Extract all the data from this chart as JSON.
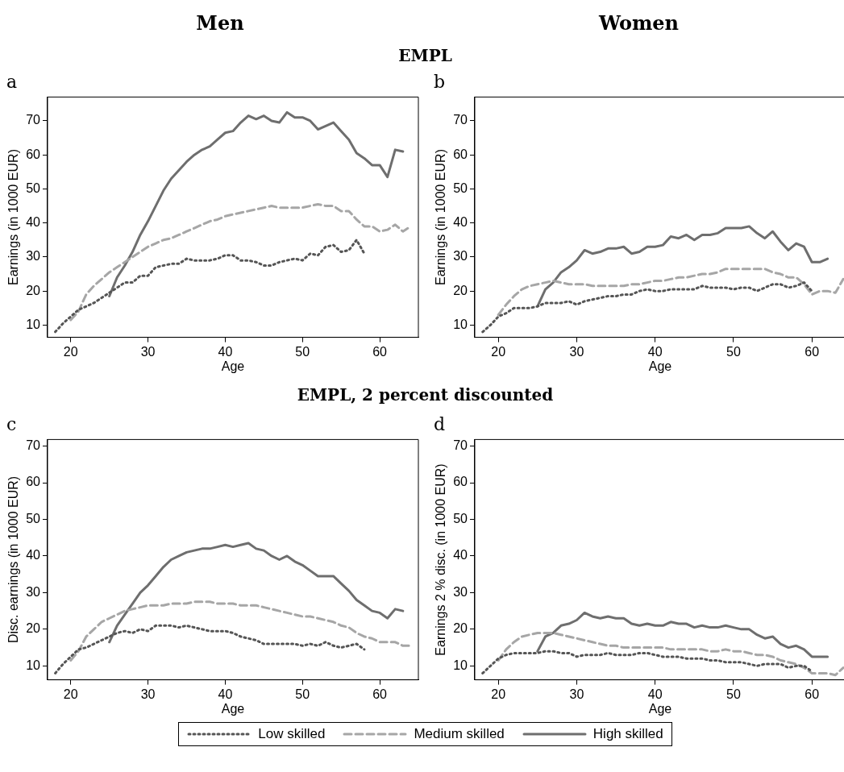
{
  "chart_data": [
    {
      "type": "line",
      "title": "a",
      "annotations": [
        "Men",
        "EMPL"
      ],
      "xlabel": "Age",
      "ylabel": "Earnings (in 1000 EUR)",
      "xlim": [
        17,
        65
      ],
      "xticks": [
        20,
        30,
        40,
        50,
        60
      ],
      "ylim": [
        6.4,
        77
      ],
      "yticks": [
        10,
        20,
        30,
        40,
        50,
        60,
        70
      ],
      "grid": false,
      "legend": "bottom",
      "marker": "none",
      "series": [
        {
          "name": "Low skilled",
          "color": "#555555",
          "line_style": "dotted",
          "x": [
            18,
            19,
            20,
            21,
            22,
            23,
            24,
            25,
            26,
            27,
            28,
            29,
            30,
            31,
            32,
            33,
            34,
            35,
            36,
            37,
            38,
            39,
            40,
            41,
            42,
            43,
            44,
            45,
            46,
            47,
            48,
            49,
            50,
            51,
            52,
            53,
            54,
            55,
            56,
            57,
            58
          ],
          "values": [
            8,
            10.5,
            12.5,
            14.5,
            15.5,
            16.5,
            18,
            19.5,
            21,
            22.5,
            22.5,
            24.5,
            24.5,
            27,
            27.5,
            28,
            28,
            29.5,
            29,
            29,
            29,
            29.5,
            30.5,
            30.5,
            29,
            29,
            28.5,
            27.5,
            27.5,
            28.5,
            29,
            29.5,
            29,
            31,
            30.5,
            33,
            33.5,
            31.5,
            32,
            35,
            31
          ]
        },
        {
          "name": "Medium skilled",
          "color": "#a6a6a6",
          "line_style": "dashed",
          "x": [
            20,
            21,
            22,
            23,
            24,
            25,
            26,
            27,
            28,
            29,
            30,
            31,
            32,
            33,
            34,
            35,
            36,
            37,
            38,
            39,
            40,
            41,
            42,
            43,
            44,
            45,
            46,
            47,
            48,
            49,
            50,
            51,
            52,
            53,
            54,
            55,
            56,
            57,
            58,
            59,
            60,
            61,
            62,
            63,
            64
          ],
          "values": [
            11.5,
            14,
            19,
            21.5,
            23.5,
            25.5,
            27,
            28.5,
            30,
            31.5,
            33,
            34,
            35,
            35.5,
            36.5,
            37.5,
            38.5,
            39.5,
            40.5,
            41,
            42,
            42.5,
            43,
            43.5,
            44,
            44.5,
            45,
            44.5,
            44.5,
            44.5,
            44.5,
            45,
            45.5,
            45,
            45,
            43.5,
            43.5,
            41,
            39,
            39,
            37.5,
            38,
            39.5,
            37.5,
            39
          ]
        },
        {
          "name": "High skilled",
          "color": "#6e6e6e",
          "line_style": "solid",
          "x": [
            25,
            26,
            27,
            28,
            29,
            30,
            31,
            32,
            33,
            34,
            35,
            36,
            37,
            38,
            39,
            40,
            41,
            42,
            43,
            44,
            45,
            46,
            47,
            48,
            49,
            50,
            51,
            52,
            53,
            54,
            55,
            56,
            57,
            58,
            59,
            60,
            61,
            62,
            63
          ],
          "values": [
            18.5,
            24,
            27.5,
            31.5,
            36.5,
            40.5,
            45,
            49.5,
            53,
            55.5,
            58,
            60,
            61.5,
            62.5,
            64.5,
            66.5,
            67,
            69.5,
            71.5,
            70.5,
            71.5,
            70,
            69.5,
            72.5,
            71,
            71,
            70,
            67.5,
            68.5,
            69.5,
            67,
            64.5,
            60.5,
            59,
            57,
            57,
            53.5,
            61.5,
            61
          ]
        }
      ]
    },
    {
      "type": "line",
      "title": "b",
      "annotations": [
        "Women"
      ],
      "xlabel": "Age",
      "ylabel": "Earnings (in 1000 EUR)",
      "xlim": [
        17,
        64.3
      ],
      "xticks": [
        20,
        30,
        40,
        50,
        60
      ],
      "ylim": [
        6.4,
        77
      ],
      "yticks": [
        10,
        20,
        30,
        40,
        50,
        60,
        70
      ],
      "grid": false,
      "marker": "none",
      "series": [
        {
          "color": "#555555",
          "line_style": "dotted",
          "x": [
            18,
            19,
            20,
            21,
            22,
            23,
            24,
            25,
            26,
            27,
            28,
            29,
            30,
            31,
            32,
            33,
            34,
            35,
            36,
            37,
            38,
            39,
            40,
            41,
            42,
            43,
            44,
            45,
            46,
            47,
            48,
            49,
            50,
            51,
            52,
            53,
            54,
            55,
            56,
            57,
            58,
            59,
            60
          ],
          "values": [
            8,
            10,
            12.5,
            13.5,
            15,
            15,
            15,
            15.5,
            16.5,
            16.5,
            16.5,
            17,
            16,
            17,
            17.5,
            18,
            18.5,
            18.5,
            19,
            19,
            20,
            20.5,
            20,
            20,
            20.5,
            20.5,
            20.5,
            20.5,
            21.5,
            21,
            21,
            21,
            20.5,
            21,
            21,
            20,
            21,
            22,
            22,
            21,
            21.5,
            22.5,
            20
          ]
        },
        {
          "color": "#a6a6a6",
          "line_style": "dashed",
          "x": [
            20,
            21,
            22,
            23,
            24,
            25,
            26,
            27,
            28,
            29,
            30,
            31,
            32,
            33,
            34,
            35,
            36,
            37,
            38,
            39,
            40,
            41,
            42,
            43,
            44,
            45,
            46,
            47,
            48,
            49,
            50,
            51,
            52,
            53,
            54,
            55,
            56,
            57,
            58,
            59,
            60,
            61,
            62,
            63,
            64
          ],
          "values": [
            13,
            16,
            18.5,
            20.5,
            21.5,
            22,
            22.5,
            23,
            22.5,
            22,
            22,
            22,
            21.5,
            21.5,
            21.5,
            21.5,
            21.5,
            22,
            22,
            22.5,
            23,
            23,
            23.5,
            24,
            24,
            24.5,
            25,
            25,
            25.5,
            26.5,
            26.5,
            26.5,
            26.5,
            26.5,
            26.5,
            25.5,
            25,
            24,
            24,
            22,
            19,
            20,
            20,
            19.5,
            23.5
          ]
        },
        {
          "color": "#6e6e6e",
          "line_style": "solid",
          "x": [
            25,
            26,
            27,
            28,
            29,
            30,
            31,
            32,
            33,
            34,
            35,
            36,
            37,
            38,
            39,
            40,
            41,
            42,
            43,
            44,
            45,
            46,
            47,
            48,
            49,
            50,
            51,
            52,
            53,
            54,
            55,
            56,
            57,
            58,
            59,
            60,
            61,
            62
          ],
          "values": [
            15.5,
            20.5,
            22.5,
            25.5,
            27,
            29,
            32,
            31,
            31.5,
            32.5,
            32.5,
            33,
            31,
            31.5,
            33,
            33,
            33.5,
            36,
            35.5,
            36.5,
            35,
            36.5,
            36.5,
            37,
            38.5,
            38.5,
            38.5,
            39,
            37,
            35.5,
            37.5,
            34.5,
            32,
            34,
            33,
            28.5,
            28.5,
            29.5
          ]
        }
      ]
    },
    {
      "type": "line",
      "title": "c",
      "annotations": [
        "EMPL, 2 percent discounted"
      ],
      "xlabel": "Age",
      "ylabel": "Disc. earnings (in 1000 EUR)",
      "xlim": [
        17,
        65
      ],
      "xticks": [
        20,
        30,
        40,
        50,
        60
      ],
      "ylim": [
        6.2,
        71.8
      ],
      "yticks": [
        10,
        20,
        30,
        40,
        50,
        60,
        70
      ],
      "grid": false,
      "marker": "none",
      "series": [
        {
          "color": "#555555",
          "line_style": "dotted",
          "x": [
            18,
            19,
            20,
            21,
            22,
            23,
            24,
            25,
            26,
            27,
            28,
            29,
            30,
            31,
            32,
            33,
            34,
            35,
            36,
            37,
            38,
            39,
            40,
            41,
            42,
            43,
            44,
            45,
            46,
            47,
            48,
            49,
            50,
            51,
            52,
            53,
            54,
            55,
            56,
            57,
            58
          ],
          "values": [
            8,
            10.5,
            12.5,
            14.5,
            15,
            16,
            17,
            18,
            19,
            19.5,
            19,
            20,
            19.5,
            21,
            21,
            21,
            20.5,
            21,
            20.5,
            20,
            19.5,
            19.5,
            19.5,
            19,
            18,
            17.5,
            17,
            16,
            16,
            16,
            16,
            16,
            15.5,
            16,
            15.5,
            16.5,
            15.5,
            15,
            15.5,
            16,
            14.5
          ]
        },
        {
          "color": "#a6a6a6",
          "line_style": "dashed",
          "x": [
            20,
            21,
            22,
            23,
            24,
            25,
            26,
            27,
            28,
            29,
            30,
            31,
            32,
            33,
            34,
            35,
            36,
            37,
            38,
            39,
            40,
            41,
            42,
            43,
            44,
            45,
            46,
            47,
            48,
            49,
            50,
            51,
            52,
            53,
            54,
            55,
            56,
            57,
            58,
            59,
            60,
            61,
            62,
            63,
            64
          ],
          "values": [
            11.5,
            14,
            18,
            20,
            22,
            23,
            24,
            25,
            25.5,
            26,
            26.5,
            26.5,
            26.5,
            27,
            27,
            27,
            27.5,
            27.5,
            27.5,
            27,
            27,
            27,
            26.5,
            26.5,
            26.5,
            26,
            25.5,
            25,
            24.5,
            24,
            23.5,
            23.5,
            23,
            22.5,
            22,
            21,
            20.5,
            19,
            18,
            17.5,
            16.5,
            16.5,
            16.5,
            15.5,
            15.5
          ]
        },
        {
          "color": "#6e6e6e",
          "line_style": "solid",
          "x": [
            25,
            26,
            27,
            28,
            29,
            30,
            31,
            32,
            33,
            34,
            35,
            36,
            37,
            38,
            39,
            40,
            41,
            42,
            43,
            44,
            45,
            46,
            47,
            48,
            49,
            50,
            51,
            52,
            53,
            54,
            55,
            56,
            57,
            58,
            59,
            60,
            61,
            62,
            63
          ],
          "values": [
            16.5,
            21,
            24,
            27,
            30,
            32,
            34.5,
            37,
            39,
            40,
            41,
            41.5,
            42,
            42,
            42.5,
            43,
            42.5,
            43,
            43.5,
            42,
            41.5,
            40,
            39,
            40,
            38.5,
            37.5,
            36,
            34.5,
            34.5,
            34.5,
            32.5,
            30.5,
            28,
            26.5,
            25,
            24.5,
            23,
            25.5,
            25
          ]
        }
      ]
    },
    {
      "type": "line",
      "title": "d",
      "xlabel": "Age",
      "ylabel": "Earnings 2 % disc. (in 1000 EUR)",
      "xlim": [
        17,
        64.3
      ],
      "xticks": [
        20,
        30,
        40,
        50,
        60
      ],
      "ylim": [
        6.2,
        71.8
      ],
      "yticks": [
        10,
        20,
        30,
        40,
        50,
        60,
        70
      ],
      "grid": false,
      "marker": "none",
      "series": [
        {
          "color": "#555555",
          "line_style": "dotted",
          "x": [
            18,
            19,
            20,
            21,
            22,
            23,
            24,
            25,
            26,
            27,
            28,
            29,
            30,
            31,
            32,
            33,
            34,
            35,
            36,
            37,
            38,
            39,
            40,
            41,
            42,
            43,
            44,
            45,
            46,
            47,
            48,
            49,
            50,
            51,
            52,
            53,
            54,
            55,
            56,
            57,
            58,
            59,
            60
          ],
          "values": [
            8,
            10,
            12,
            13,
            13.5,
            13.5,
            13.5,
            13.5,
            14,
            14,
            13.5,
            13.5,
            12.5,
            13,
            13,
            13,
            13.5,
            13,
            13,
            13,
            13.5,
            13.5,
            13,
            12.5,
            12.5,
            12.5,
            12,
            12,
            12,
            11.5,
            11.5,
            11,
            11,
            11,
            10.5,
            10,
            10.5,
            10.5,
            10.5,
            9.5,
            10,
            10,
            8.5
          ]
        },
        {
          "color": "#a6a6a6",
          "line_style": "dashed",
          "x": [
            20,
            21,
            22,
            23,
            24,
            25,
            26,
            27,
            28,
            29,
            30,
            31,
            32,
            33,
            34,
            35,
            36,
            37,
            38,
            39,
            40,
            41,
            42,
            43,
            44,
            45,
            46,
            47,
            48,
            49,
            50,
            51,
            52,
            53,
            54,
            55,
            56,
            57,
            58,
            59,
            60,
            61,
            62,
            63,
            64
          ],
          "values": [
            11.5,
            14.5,
            16.5,
            18,
            18.5,
            19,
            19,
            19,
            18.5,
            18,
            17.5,
            17,
            16.5,
            16,
            15.5,
            15.5,
            15,
            15,
            15,
            15,
            15,
            15,
            14.5,
            14.5,
            14.5,
            14.5,
            14.5,
            14,
            14,
            14.5,
            14,
            14,
            13.5,
            13,
            13,
            12.5,
            11.5,
            11,
            10.5,
            9.5,
            8,
            8,
            8,
            7.5,
            9.5
          ]
        },
        {
          "color": "#6e6e6e",
          "line_style": "solid",
          "x": [
            25,
            26,
            27,
            28,
            29,
            30,
            31,
            32,
            33,
            34,
            35,
            36,
            37,
            38,
            39,
            40,
            41,
            42,
            43,
            44,
            45,
            46,
            47,
            48,
            49,
            50,
            51,
            52,
            53,
            54,
            55,
            56,
            57,
            58,
            59,
            60,
            61,
            62
          ],
          "values": [
            14,
            18,
            19,
            21,
            21.5,
            22.5,
            24.5,
            23.5,
            23,
            23.5,
            23,
            23,
            21.5,
            21,
            21.5,
            21,
            21,
            22,
            21.5,
            21.5,
            20.5,
            21,
            20.5,
            20.5,
            21,
            20.5,
            20,
            20,
            18.5,
            17.5,
            18,
            16,
            15,
            15.5,
            14.5,
            12.5,
            12.5,
            12.5
          ]
        }
      ]
    }
  ]
}
